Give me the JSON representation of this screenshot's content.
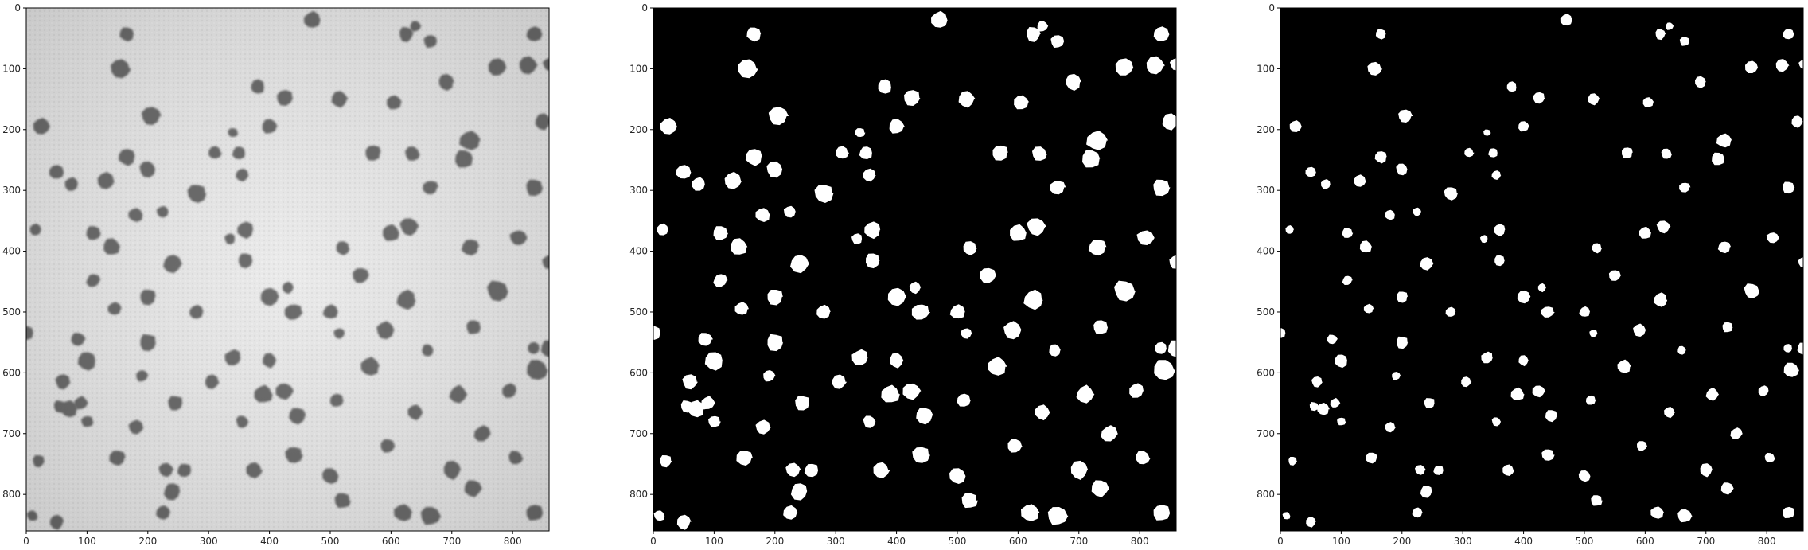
{
  "figure": {
    "panels": [
      {
        "name": "grayscale-original",
        "kind": "grayscale-photo",
        "background": "#e6e6e6",
        "blob_color": "#3a3a3a",
        "x_ticks": [
          "0",
          "100",
          "200",
          "300",
          "400",
          "500",
          "600",
          "700",
          "800"
        ],
        "y_ticks": [
          "0",
          "100",
          "200",
          "300",
          "400",
          "500",
          "600",
          "700",
          "800"
        ]
      },
      {
        "name": "binary-threshold",
        "kind": "binary-mask",
        "background": "#000000",
        "blob_color": "#ffffff",
        "x_ticks": [
          "0",
          "100",
          "200",
          "300",
          "400",
          "500",
          "600",
          "700",
          "800"
        ],
        "y_ticks": [
          "0",
          "100",
          "200",
          "300",
          "400",
          "500",
          "600",
          "700",
          "800"
        ]
      },
      {
        "name": "eroded-mask",
        "kind": "binary-mask-eroded",
        "background": "#000000",
        "blob_color": "#ffffff",
        "x_ticks": [
          "0",
          "100",
          "200",
          "300",
          "400",
          "500",
          "600",
          "700",
          "800"
        ],
        "y_ticks": [
          "0",
          "100",
          "200",
          "300",
          "400",
          "500",
          "600",
          "700",
          "800"
        ]
      }
    ],
    "image_size": [
      860,
      860
    ],
    "blobs": [
      [
        470,
        20,
        14
      ],
      [
        165,
        43,
        12
      ],
      [
        625,
        43,
        12
      ],
      [
        640,
        30,
        9
      ],
      [
        665,
        55,
        11
      ],
      [
        835,
        43,
        13
      ],
      [
        155,
        100,
        16
      ],
      [
        775,
        98,
        14
      ],
      [
        825,
        95,
        15
      ],
      [
        860,
        93,
        10
      ],
      [
        690,
        122,
        13
      ],
      [
        380,
        130,
        12
      ],
      [
        425,
        148,
        14
      ],
      [
        515,
        150,
        14
      ],
      [
        605,
        155,
        12
      ],
      [
        205,
        178,
        16
      ],
      [
        400,
        195,
        12
      ],
      [
        25,
        195,
        13
      ],
      [
        850,
        187,
        13
      ],
      [
        340,
        205,
        8
      ],
      [
        730,
        218,
        17
      ],
      [
        720,
        248,
        15
      ],
      [
        310,
        238,
        11
      ],
      [
        350,
        238,
        11
      ],
      [
        165,
        245,
        14
      ],
      [
        200,
        265,
        13
      ],
      [
        570,
        238,
        13
      ],
      [
        635,
        240,
        12
      ],
      [
        50,
        270,
        12
      ],
      [
        75,
        290,
        11
      ],
      [
        130,
        285,
        14
      ],
      [
        355,
        275,
        11
      ],
      [
        280,
        305,
        16
      ],
      [
        665,
        295,
        12
      ],
      [
        835,
        295,
        14
      ],
      [
        180,
        340,
        12
      ],
      [
        225,
        335,
        10
      ],
      [
        15,
        365,
        10
      ],
      [
        110,
        370,
        12
      ],
      [
        140,
        393,
        14
      ],
      [
        360,
        365,
        14
      ],
      [
        335,
        380,
        9
      ],
      [
        520,
        395,
        11
      ],
      [
        600,
        370,
        14
      ],
      [
        630,
        360,
        15
      ],
      [
        730,
        393,
        14
      ],
      [
        810,
        378,
        14
      ],
      [
        860,
        418,
        12
      ],
      [
        240,
        420,
        15
      ],
      [
        360,
        415,
        12
      ],
      [
        110,
        448,
        11
      ],
      [
        550,
        440,
        13
      ],
      [
        775,
        465,
        17
      ],
      [
        400,
        475,
        16
      ],
      [
        430,
        460,
        10
      ],
      [
        200,
        475,
        13
      ],
      [
        145,
        495,
        11
      ],
      [
        280,
        500,
        11
      ],
      [
        440,
        500,
        14
      ],
      [
        500,
        500,
        12
      ],
      [
        625,
        480,
        16
      ],
      [
        0,
        535,
        12
      ],
      [
        85,
        545,
        12
      ],
      [
        200,
        550,
        14
      ],
      [
        515,
        535,
        9
      ],
      [
        590,
        530,
        14
      ],
      [
        735,
        525,
        12
      ],
      [
        835,
        560,
        10
      ],
      [
        860,
        560,
        14
      ],
      [
        100,
        580,
        15
      ],
      [
        340,
        575,
        13
      ],
      [
        400,
        580,
        12
      ],
      [
        660,
        563,
        10
      ],
      [
        840,
        595,
        18
      ],
      [
        565,
        590,
        15
      ],
      [
        60,
        615,
        12
      ],
      [
        190,
        605,
        10
      ],
      [
        305,
        615,
        12
      ],
      [
        390,
        635,
        15
      ],
      [
        425,
        630,
        14
      ],
      [
        510,
        645,
        11
      ],
      [
        70,
        660,
        14
      ],
      [
        55,
        655,
        10
      ],
      [
        90,
        650,
        11
      ],
      [
        245,
        650,
        13
      ],
      [
        640,
        665,
        12
      ],
      [
        710,
        635,
        14
      ],
      [
        795,
        630,
        12
      ],
      [
        355,
        680,
        10
      ],
      [
        445,
        670,
        14
      ],
      [
        100,
        680,
        10
      ],
      [
        180,
        690,
        12
      ],
      [
        750,
        700,
        13
      ],
      [
        150,
        740,
        13
      ],
      [
        20,
        745,
        10
      ],
      [
        440,
        735,
        14
      ],
      [
        595,
        720,
        12
      ],
      [
        805,
        740,
        12
      ],
      [
        230,
        760,
        12
      ],
      [
        260,
        760,
        11
      ],
      [
        375,
        760,
        13
      ],
      [
        700,
        760,
        15
      ],
      [
        240,
        795,
        14
      ],
      [
        500,
        770,
        13
      ],
      [
        735,
        790,
        14
      ],
      [
        520,
        810,
        13
      ],
      [
        835,
        830,
        14
      ],
      [
        225,
        830,
        11
      ],
      [
        620,
        830,
        15
      ],
      [
        665,
        835,
        16
      ],
      [
        10,
        835,
        9
      ],
      [
        50,
        845,
        12
      ]
    ]
  }
}
